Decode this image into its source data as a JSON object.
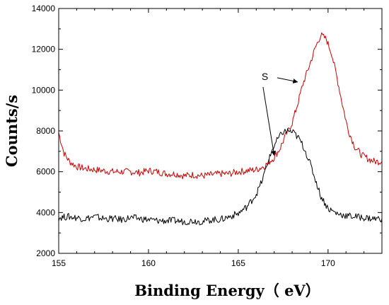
{
  "chart_data": {
    "type": "line",
    "xlabel": "Binding Energy（ eV）",
    "ylabel": "Counts/s",
    "xlim": [
      155,
      173
    ],
    "ylim": [
      2000,
      14000
    ],
    "x_ticks": [
      155,
      160,
      165,
      170
    ],
    "x_tick_labels": [
      "155",
      "160",
      "165",
      "170"
    ],
    "y_ticks": [
      2000,
      4000,
      6000,
      8000,
      10000,
      12000,
      14000
    ],
    "y_tick_labels": [
      "2000",
      "4000",
      "6000",
      "8000",
      "10000",
      "12000",
      "14000"
    ],
    "grid": false,
    "legend": "none",
    "annotations": [
      {
        "text": "S",
        "points_to": [
          [
            167.0,
            6800
          ],
          [
            168.3,
            10400
          ]
        ]
      }
    ],
    "series": [
      {
        "color": "#cc0000",
        "x": [
          155,
          155.3,
          155.6,
          156,
          156.5,
          157,
          157.5,
          158,
          158.5,
          159,
          159.5,
          160,
          160.5,
          161,
          161.5,
          162,
          162.5,
          163,
          163.5,
          164,
          164.5,
          165,
          165.5,
          166,
          166.5,
          167,
          167.3,
          167.6,
          168,
          168.3,
          168.6,
          169,
          169.3,
          169.6,
          169.9,
          170.2,
          170.5,
          170.8,
          171.1,
          171.5,
          171.9,
          172.3,
          172.6,
          173
        ],
        "values": [
          7900,
          6900,
          6500,
          6250,
          6150,
          6100,
          6050,
          6000,
          6000,
          6000,
          5950,
          6050,
          6000,
          5900,
          5900,
          5800,
          5850,
          5800,
          5850,
          5900,
          5900,
          6000,
          6050,
          6100,
          6300,
          6700,
          7100,
          7700,
          8400,
          9300,
          10300,
          11300,
          12100,
          12700,
          12500,
          11800,
          10600,
          9300,
          8100,
          7200,
          6800,
          6600,
          6500,
          6500
        ]
      },
      {
        "color": "#000000",
        "x": [
          155,
          155.5,
          156,
          156.5,
          157,
          157.5,
          158,
          158.5,
          159,
          159.5,
          160,
          160.5,
          161,
          161.5,
          162,
          162.5,
          163,
          163.5,
          164,
          164.5,
          165,
          165.5,
          166,
          166.3,
          166.6,
          166.9,
          167.2,
          167.5,
          167.8,
          168.1,
          168.4,
          168.7,
          169,
          169.3,
          169.6,
          170,
          170.5,
          171,
          171.5,
          172,
          172.5,
          173
        ],
        "values": [
          3750,
          3800,
          3750,
          3700,
          3800,
          3700,
          3700,
          3650,
          3750,
          3700,
          3650,
          3600,
          3600,
          3600,
          3550,
          3600,
          3550,
          3650,
          3650,
          3800,
          3950,
          4300,
          4900,
          5500,
          6300,
          7100,
          7600,
          7950,
          8000,
          7900,
          7600,
          7100,
          6400,
          5600,
          4800,
          4200,
          3950,
          3850,
          3800,
          3750,
          3700,
          3700
        ]
      }
    ]
  }
}
